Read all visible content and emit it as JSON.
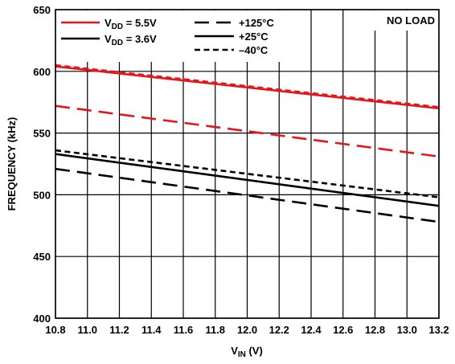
{
  "chart_data": {
    "type": "line",
    "xlabel": {
      "main": "V",
      "sub": "IN",
      "unit": " (V)"
    },
    "ylabel": "FREQUENCY (kHz)",
    "xlim": [
      10.8,
      13.2
    ],
    "ylim": [
      400,
      650
    ],
    "x_ticks": [
      "10.8",
      "11.0",
      "11.2",
      "11.4",
      "11.6",
      "11.8",
      "12.0",
      "12.2",
      "12.4",
      "12.6",
      "12.8",
      "13.0",
      "13.2"
    ],
    "y_ticks": [
      "400",
      "450",
      "500",
      "550",
      "600",
      "650"
    ],
    "grid": true,
    "annotation": "NO LOAD",
    "legend_supply": [
      {
        "main": "V",
        "sub": "DD",
        "value": " = 5.5V",
        "color": "#e8141b"
      },
      {
        "main": "V",
        "sub": "DD",
        "value": " = 3.6V",
        "color": "#000000"
      }
    ],
    "legend_temp": [
      {
        "label": "+125°C",
        "style": "long-dash"
      },
      {
        "label": "+25°C",
        "style": "solid"
      },
      {
        "label": "–40°C",
        "style": "short-dash"
      }
    ],
    "series": [
      {
        "supply": "5.5V",
        "temp": "–40°C",
        "color": "#e8141b",
        "style": "short-dash",
        "x": [
          10.8,
          13.2
        ],
        "y": [
          605,
          571
        ]
      },
      {
        "supply": "5.5V",
        "temp": "+25°C",
        "color": "#e8141b",
        "style": "solid",
        "x": [
          10.8,
          13.2
        ],
        "y": [
          604,
          570
        ]
      },
      {
        "supply": "5.5V",
        "temp": "+125°C",
        "color": "#e8141b",
        "style": "long-dash",
        "x": [
          10.8,
          13.2
        ],
        "y": [
          572,
          531
        ]
      },
      {
        "supply": "3.6V",
        "temp": "–40°C",
        "color": "#000000",
        "style": "short-dash",
        "x": [
          10.8,
          13.2
        ],
        "y": [
          536,
          498
        ]
      },
      {
        "supply": "3.6V",
        "temp": "+25°C",
        "color": "#000000",
        "style": "solid",
        "x": [
          10.8,
          13.2
        ],
        "y": [
          533,
          491
        ]
      },
      {
        "supply": "3.6V",
        "temp": "+125°C",
        "color": "#000000",
        "style": "long-dash",
        "x": [
          10.8,
          13.2
        ],
        "y": [
          521,
          478
        ]
      }
    ]
  }
}
